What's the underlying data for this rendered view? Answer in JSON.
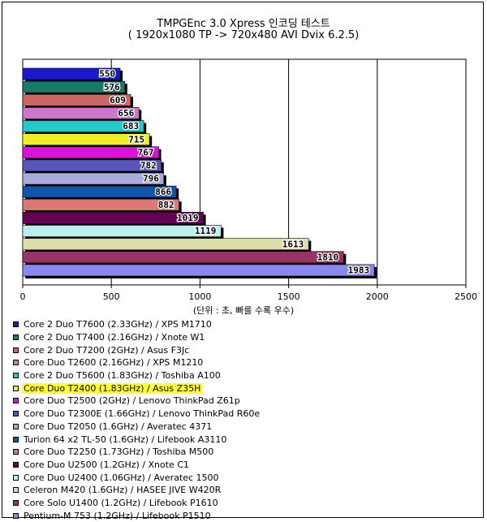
{
  "chart_data": {
    "type": "bar",
    "orientation": "horizontal",
    "title": "TMPGEnc 3.0 Xpress 인코딩 테스트",
    "subtitle": "( 1920x1080 TP -> 720x480 AVI Dvix 6.2.5)",
    "xlabel": "(단위 : 초, 빠를 수록 우수)",
    "xlim": [
      0,
      2500
    ],
    "xticks": [
      "0",
      "500",
      "1000",
      "1500",
      "2000",
      "2500"
    ],
    "grid": true,
    "legend_position": "bottom",
    "highlighted": "Core Duo T2400 (1.83GHz) / Asus Z35H",
    "series": [
      {
        "name": "Core 2 Duo T7600 (2.33GHz) / XPS M1710",
        "value": 550,
        "color": "#1a1acc"
      },
      {
        "name": "Core 2 Duo T7400 (2.16GHz) / Xnote W1",
        "value": 576,
        "color": "#1a7a6a"
      },
      {
        "name": "Core 2 Duo T7200 (2GHz) / Asus F3Jc",
        "value": 609,
        "color": "#cc6666"
      },
      {
        "name": "Core Duo T2600 (2.16GHz) / XPS M1210",
        "value": 656,
        "color": "#cc77cc"
      },
      {
        "name": "Core 2 Duo T5600 (1.83GHz) / Toshiba A100",
        "value": 683,
        "color": "#22c9c9"
      },
      {
        "name": "Core Duo T2400 (1.83GHz) / Asus Z35H",
        "value": 715,
        "color": "#eeee22"
      },
      {
        "name": "Core Duo T2500 (2GHz) / Lenovo ThinkPad Z61p",
        "value": 767,
        "color": "#dd11dd"
      },
      {
        "name": "Core Duo T2300E (1.66GHz) / Lenovo ThinkPad R60e",
        "value": 782,
        "color": "#5555bb"
      },
      {
        "name": "Core Duo T2050 (1.6GHz) / Averatec 4371",
        "value": 796,
        "color": "#aaaadd"
      },
      {
        "name": "Turion 64 x2 TL-50 (1.6GHz) / Lifebook A3110",
        "value": 866,
        "color": "#1155aa"
      },
      {
        "name": "Core Duo T2250 (1.73GHz) / Toshiba M500",
        "value": 882,
        "color": "#dd7777"
      },
      {
        "name": "Core Duo U2500 (1.2GHz) / Xnote C1",
        "value": 1019,
        "color": "#660055"
      },
      {
        "name": "Core Duo U2400 (1.06GHz) / Averatec 1500",
        "value": 1119,
        "color": "#bbeeee"
      },
      {
        "name": "Celeron M420 (1.6GHz) / HASEE JIVE W420R",
        "value": 1613,
        "color": "#ddddaa"
      },
      {
        "name": "Core Solo U1400 (1.2GHz) / Lifebook P1610",
        "value": 1810,
        "color": "#993366"
      },
      {
        "name": "Pentium-M 753 (1.2GHz) / Lifebook P1510",
        "value": 1983,
        "color": "#8888ee"
      }
    ]
  }
}
